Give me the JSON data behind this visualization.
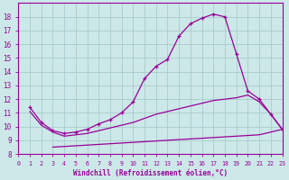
{
  "xlabel": "Windchill (Refroidissement éolien,°C)",
  "bg_color": "#cce8e8",
  "grid_color": "#aacccc",
  "line_color": "#990099",
  "xlim": [
    0,
    23
  ],
  "ylim": [
    8,
    19
  ],
  "xticks": [
    0,
    1,
    2,
    3,
    4,
    5,
    6,
    7,
    8,
    9,
    10,
    11,
    12,
    13,
    14,
    15,
    16,
    17,
    18,
    19,
    20,
    21,
    22,
    23
  ],
  "yticks": [
    8,
    9,
    10,
    11,
    12,
    13,
    14,
    15,
    16,
    17,
    18
  ],
  "line1_x": [
    1,
    2,
    3,
    4,
    5,
    6,
    7,
    8,
    9,
    10,
    11,
    12,
    13,
    14,
    15,
    16,
    17,
    18,
    19,
    20,
    21,
    22,
    23
  ],
  "line1_y": [
    11.4,
    10.3,
    9.7,
    9.5,
    9.6,
    9.8,
    10.2,
    10.5,
    11.0,
    11.8,
    13.5,
    14.4,
    14.9,
    16.6,
    17.5,
    17.9,
    18.2,
    18.0,
    15.3,
    12.6,
    12.0,
    10.9,
    9.8
  ],
  "line2_x": [
    1,
    2,
    3,
    4,
    5,
    6,
    7,
    8,
    9,
    10,
    11,
    12,
    13,
    14,
    15,
    16,
    17,
    18,
    19,
    20,
    21,
    22,
    23
  ],
  "line2_y": [
    11.1,
    10.1,
    9.6,
    9.3,
    9.4,
    9.5,
    9.7,
    9.9,
    10.1,
    10.3,
    10.6,
    10.9,
    11.1,
    11.3,
    11.5,
    11.7,
    11.9,
    12.0,
    12.1,
    12.3,
    11.8,
    10.9,
    9.8
  ],
  "line3_x": [
    3,
    4,
    5,
    6,
    7,
    8,
    9,
    10,
    11,
    12,
    13,
    14,
    15,
    16,
    17,
    18,
    19,
    20,
    21,
    22,
    23
  ],
  "line3_y": [
    8.5,
    8.55,
    8.6,
    8.65,
    8.7,
    8.75,
    8.8,
    8.85,
    8.9,
    8.95,
    9.0,
    9.05,
    9.1,
    9.15,
    9.2,
    9.25,
    9.3,
    9.35,
    9.4,
    9.6,
    9.8
  ]
}
